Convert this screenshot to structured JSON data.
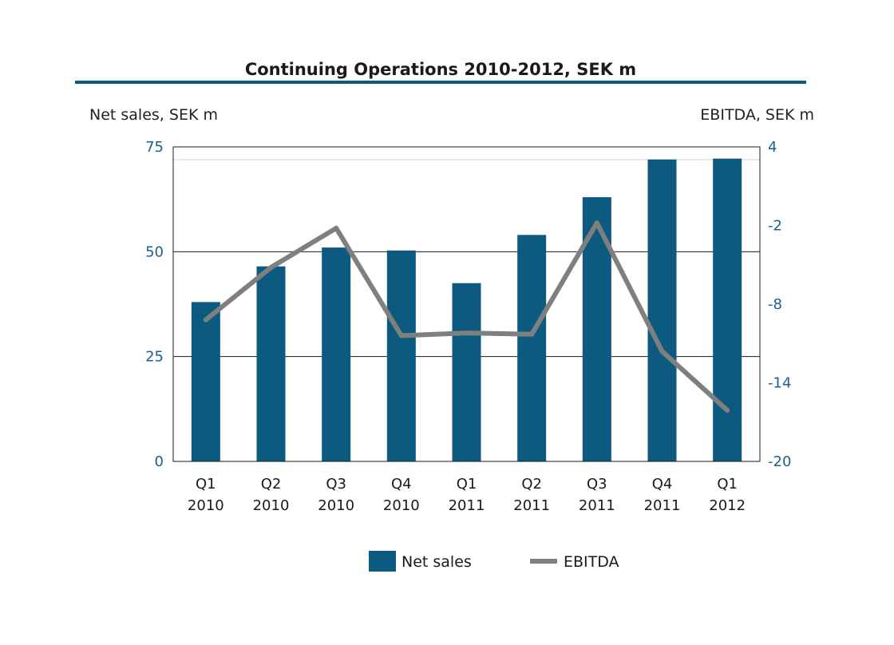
{
  "colors": {
    "bar": "#0d5a80",
    "line": "#7f7f7f",
    "title_rule": "#0d5a80",
    "tick_labels": "#1d5f8c",
    "text": "#1a1a1a"
  },
  "chart_data": {
    "type": "bar",
    "title": "Continuing Operations 2010-2012, SEK m",
    "ylabel_left": "Net sales, SEK m",
    "ylabel_right": "EBITDA, SEK m",
    "categories": [
      [
        "Q1",
        "2010"
      ],
      [
        "Q2",
        "2010"
      ],
      [
        "Q3",
        "2010"
      ],
      [
        "Q4",
        "2010"
      ],
      [
        "Q1",
        "2011"
      ],
      [
        "Q2",
        "2011"
      ],
      [
        "Q3",
        "2011"
      ],
      [
        "Q4",
        "2011"
      ],
      [
        "Q1",
        "2012"
      ]
    ],
    "y_left": {
      "min": 0,
      "max": 75,
      "ticks": [
        "0",
        "25",
        "50",
        "75"
      ]
    },
    "y_right": {
      "min": -20,
      "max": 4,
      "ticks": [
        "-20",
        "-14",
        "-8",
        "-2",
        "4"
      ]
    },
    "grid": true,
    "legend_position": "bottom",
    "series": [
      {
        "name": "Net sales",
        "type": "bar",
        "axis": "left",
        "values": [
          38,
          46.5,
          51,
          50.3,
          42.5,
          54,
          63,
          72,
          72.2
        ]
      },
      {
        "name": "EBITDA",
        "type": "line",
        "axis": "right",
        "values": [
          -9.2,
          -5.2,
          -2.2,
          -10.4,
          -10.2,
          -10.3,
          -1.8,
          -11.6,
          -16.1
        ]
      }
    ]
  }
}
